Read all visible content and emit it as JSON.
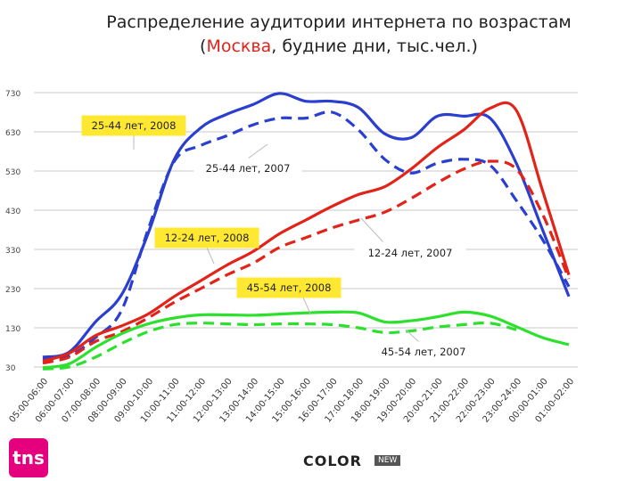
{
  "chart_data": {
    "type": "line",
    "title_line1": "Распределение аудитории интернета по возрастам",
    "title_line2_pre": "(",
    "title_line2_accent": "Москва",
    "title_line2_post": ", будние дни, тыс.чел.)",
    "ylim": [
      30,
      730
    ],
    "yticks": [
      730,
      630,
      530,
      430,
      330,
      230,
      130,
      30
    ],
    "categories": [
      "05:00-06:00",
      "06:00-07:00",
      "07:00-08:00",
      "08:00-09:00",
      "09:00-10:00",
      "10:00-11:00",
      "11:00-12:00",
      "12:00-13:00",
      "13:00-14:00",
      "14:00-15:00",
      "15:00-16:00",
      "16:00-17:00",
      "17:00-18:00",
      "18:00-19:00",
      "19:00-20:00",
      "20:00-21:00",
      "21:00-22:00",
      "22:00-23:00",
      "23:00-24:00",
      "00:00-01:00",
      "01:00-02:00"
    ],
    "series": [
      {
        "name": "25-44 лет, 2008",
        "color": "#2b3fcf",
        "dashed": false,
        "values": [
          55,
          68,
          145,
          215,
          370,
          560,
          640,
          675,
          700,
          728,
          708,
          708,
          692,
          625,
          615,
          670,
          670,
          665,
          550,
          380,
          210
        ]
      },
      {
        "name": "25-44 лет, 2007",
        "color": "#2b3fcf",
        "dashed": true,
        "values": [
          50,
          58,
          105,
          175,
          380,
          555,
          595,
          620,
          648,
          665,
          665,
          680,
          635,
          560,
          525,
          550,
          560,
          545,
          455,
          355,
          235
        ]
      },
      {
        "name": "12-24 лет, 2008",
        "color": "#e2231a",
        "dashed": false,
        "values": [
          45,
          65,
          110,
          135,
          165,
          210,
          250,
          290,
          325,
          370,
          405,
          440,
          470,
          490,
          535,
          590,
          635,
          690,
          685,
          480,
          265
        ]
      },
      {
        "name": "12-24 лет, 2007",
        "color": "#e2231a",
        "dashed": true,
        "values": [
          40,
          55,
          95,
          120,
          155,
          195,
          230,
          265,
          295,
          335,
          360,
          385,
          405,
          425,
          460,
          500,
          535,
          555,
          535,
          420,
          255
        ]
      },
      {
        "name": "45-54 лет, 2008",
        "color": "#2ee02e",
        "dashed": false,
        "values": [
          28,
          38,
          80,
          115,
          140,
          155,
          163,
          163,
          162,
          165,
          168,
          170,
          168,
          145,
          148,
          158,
          170,
          160,
          133,
          105,
          87
        ]
      },
      {
        "name": "45-54 лет, 2007",
        "color": "#2ee02e",
        "dashed": true,
        "values": [
          25,
          30,
          55,
          90,
          120,
          138,
          142,
          140,
          138,
          140,
          140,
          138,
          130,
          118,
          122,
          132,
          138,
          142,
          125,
          null,
          null
        ]
      }
    ],
    "annotations": [
      {
        "text": "25-44 лет, 2008",
        "style": "yellow"
      },
      {
        "text": "25-44 лет, 2007",
        "style": "white"
      },
      {
        "text": "12-24 лет, 2008",
        "style": "yellow"
      },
      {
        "text": "12-24 лет, 2007",
        "style": "white"
      },
      {
        "text": "45-54 лет, 2008",
        "style": "yellow"
      },
      {
        "text": "45-54 лет, 2007",
        "style": "white"
      }
    ]
  },
  "logos": {
    "tns": "tns",
    "color_brand": "COLOR",
    "new_badge": "NEW"
  }
}
